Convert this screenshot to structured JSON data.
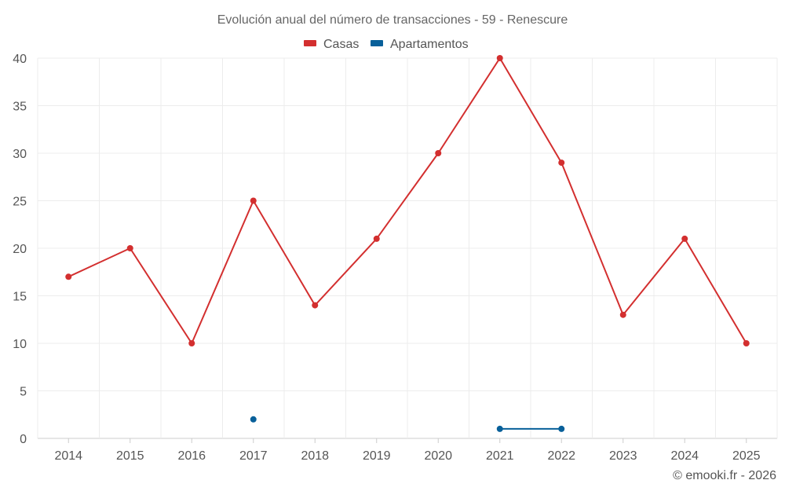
{
  "chart_data": {
    "type": "line",
    "title": "Evolución anual del número de transacciones - 59 - Renescure",
    "categories": [
      "2014",
      "2015",
      "2016",
      "2017",
      "2018",
      "2019",
      "2020",
      "2021",
      "2022",
      "2023",
      "2024",
      "2025"
    ],
    "ylim": [
      0,
      40
    ],
    "yticks": [
      0,
      5,
      10,
      15,
      20,
      25,
      30,
      35,
      40
    ],
    "grid": true,
    "legend_position": "top-center",
    "series": [
      {
        "name": "Casas",
        "color": "#d32f2f",
        "values": [
          17,
          20,
          10,
          25,
          14,
          21,
          30,
          40,
          29,
          13,
          21,
          10
        ]
      },
      {
        "name": "Apartamentos",
        "color": "#08609a",
        "values": [
          null,
          null,
          null,
          2,
          null,
          null,
          null,
          1,
          1,
          null,
          null,
          null
        ]
      }
    ]
  },
  "credit": "© emooki.fr - 2026"
}
